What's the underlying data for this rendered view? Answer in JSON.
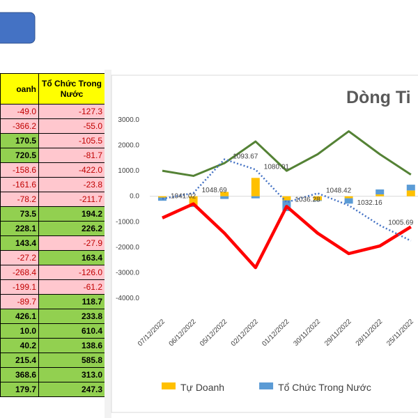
{
  "table": {
    "headers": [
      "oanh",
      "Tổ Chức Trong Nước"
    ],
    "rows": [
      [
        {
          "text": "-49.0",
          "fill": "pink"
        },
        {
          "text": "-127.3",
          "fill": "pink"
        }
      ],
      [
        {
          "text": "-366.2",
          "fill": "pink"
        },
        {
          "text": "-55.0",
          "fill": "pink"
        }
      ],
      [
        {
          "text": "170.5",
          "fill": "green"
        },
        {
          "text": "-105.5",
          "fill": "pink"
        }
      ],
      [
        {
          "text": "720.5",
          "fill": "green"
        },
        {
          "text": "-81.7",
          "fill": "pink"
        }
      ],
      [
        {
          "text": "-158.6",
          "fill": "pink"
        },
        {
          "text": "-422.0",
          "fill": "pink"
        }
      ],
      [
        {
          "text": "-161.6",
          "fill": "pink"
        },
        {
          "text": "-23.8",
          "fill": "pink"
        }
      ],
      [
        {
          "text": "-78.2",
          "fill": "pink"
        },
        {
          "text": "-211.7",
          "fill": "pink"
        }
      ],
      [
        {
          "text": "73.5",
          "fill": "green"
        },
        {
          "text": "194.2",
          "fill": "green"
        }
      ],
      [
        {
          "text": "228.1",
          "fill": "green"
        },
        {
          "text": "226.2",
          "fill": "green"
        }
      ],
      [
        {
          "text": "143.4",
          "fill": "green"
        },
        {
          "text": "-27.9",
          "fill": "pink"
        }
      ],
      [
        {
          "text": "-27.2",
          "fill": "pink"
        },
        {
          "text": "163.4",
          "fill": "green"
        }
      ],
      [
        {
          "text": "-268.4",
          "fill": "pink"
        },
        {
          "text": "-126.0",
          "fill": "pink"
        }
      ],
      [
        {
          "text": "-199.1",
          "fill": "pink"
        },
        {
          "text": "-61.2",
          "fill": "pink"
        }
      ],
      [
        {
          "text": "-89.7",
          "fill": "pink"
        },
        {
          "text": "118.7",
          "fill": "green"
        }
      ],
      [
        {
          "text": "426.1",
          "fill": "green"
        },
        {
          "text": "233.8",
          "fill": "green"
        }
      ],
      [
        {
          "text": "10.0",
          "fill": "green"
        },
        {
          "text": "610.4",
          "fill": "green"
        }
      ],
      [
        {
          "text": "40.2",
          "fill": "green"
        },
        {
          "text": "138.6",
          "fill": "green"
        }
      ],
      [
        {
          "text": "215.4",
          "fill": "green"
        },
        {
          "text": "585.8",
          "fill": "green"
        }
      ],
      [
        {
          "text": "368.6",
          "fill": "green"
        },
        {
          "text": "313.0",
          "fill": "green"
        }
      ],
      [
        {
          "text": "179.7",
          "fill": "green"
        },
        {
          "text": "247.3",
          "fill": "green"
        }
      ]
    ]
  },
  "chart_data": {
    "type": "combo",
    "title": "Dòng Ti",
    "categories": [
      "07/12/2022",
      "06/12/2022",
      "05/12/2022",
      "02/12/2022",
      "01/12/2022",
      "30/11/2022",
      "29/11/2022",
      "28/11/2022",
      "25/11/2022"
    ],
    "ylim": [
      -4000,
      3000
    ],
    "yticks": [
      {
        "value": 3000,
        "label": "3000.0"
      },
      {
        "value": 2000,
        "label": "2000.0"
      },
      {
        "value": 1000,
        "label": "1000.0"
      },
      {
        "value": 0,
        "label": "0.0"
      },
      {
        "value": -1000,
        "label": "-1000.0"
      },
      {
        "value": -2000,
        "label": "-2000.0"
      },
      {
        "value": -3000,
        "label": "-3000.0"
      },
      {
        "value": -4000,
        "label": "-4000.0"
      }
    ],
    "y2lim": [
      908.5,
      1146.3
    ],
    "series": [
      {
        "name": "Tự Doanh",
        "type": "bar",
        "color": "#ffc000",
        "values": [
          -49.0,
          -366.2,
          170.5,
          720.5,
          -158.6,
          -161.6,
          -78.2,
          73.5,
          228.1
        ]
      },
      {
        "name": "Tổ Chức Trong Nước",
        "type": "bar",
        "color": "#5b9bd5",
        "values": [
          -127.3,
          -55.0,
          -105.5,
          -81.7,
          -422.0,
          -23.8,
          -211.7,
          194.2,
          226.2
        ]
      },
      {
        "type": "line",
        "color": "#548235",
        "values": [
          1000,
          800,
          1300,
          2150,
          1000,
          1650,
          2550,
          1650,
          850
        ]
      },
      {
        "type": "line",
        "color": "#ff0000",
        "values": [
          -850,
          -300,
          -1450,
          -2800,
          -400,
          -1450,
          -2250,
          -1950,
          -1200
        ]
      },
      {
        "type": "line",
        "style": "dotted",
        "axis": "y2",
        "color": "#4472c4",
        "values": [
          1041.02,
          1048.69,
          1093.67,
          1080.01,
          1036.28,
          1048.42,
          1032.16,
          1005.69,
          985
        ]
      }
    ]
  }
}
